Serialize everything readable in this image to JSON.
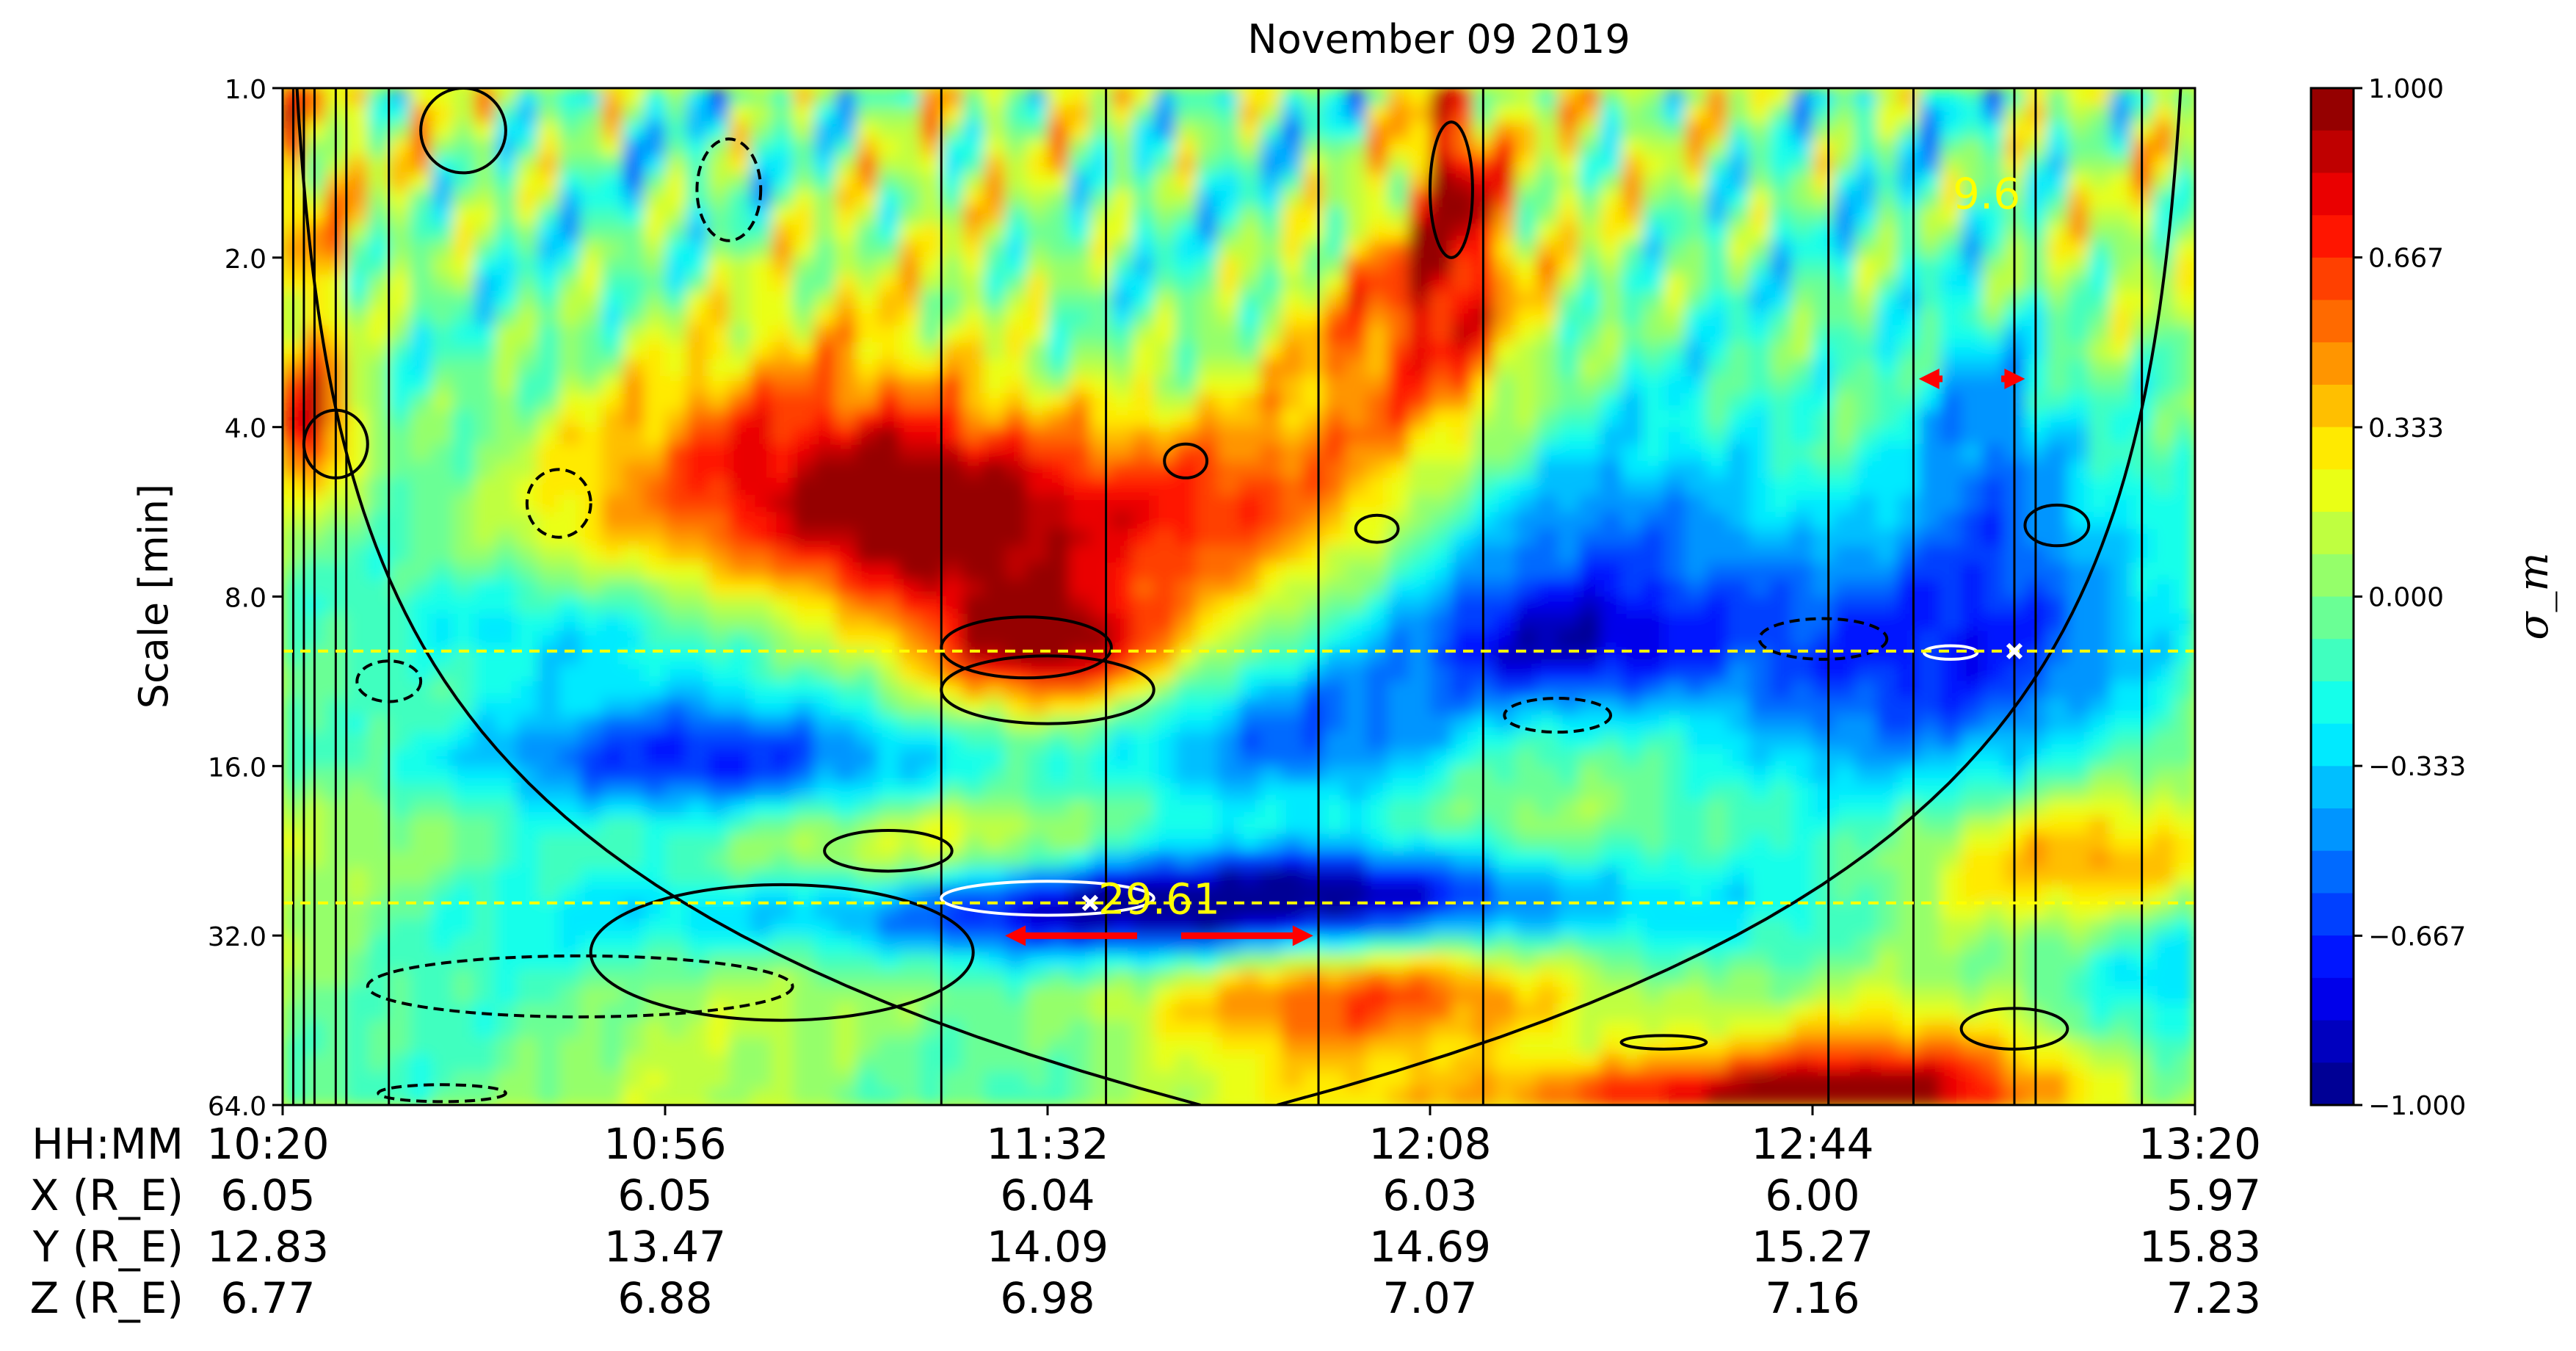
{
  "chart_data": {
    "type": "heatmap",
    "title": "November 09 2019",
    "xlabel": "",
    "ylabel": "Scale [min]",
    "y_log_base": 2,
    "ylim": [
      1.0,
      64.0
    ],
    "y_ticks": [
      1.0,
      2.0,
      4.0,
      8.0,
      16.0,
      32.0,
      64.0
    ],
    "y_tick_labels": [
      "1.0",
      "2.0",
      "4.0",
      "8.0",
      "16.0",
      "32.0",
      "64.0"
    ],
    "y_inverted": true,
    "x_range_hhmm": [
      "10:20",
      "13:20"
    ],
    "colorbar": {
      "label": "σ_m",
      "range": [
        -1.0,
        1.0
      ],
      "ticks": [
        1.0,
        0.667,
        0.333,
        0.0,
        -0.333,
        -0.667,
        -1.0
      ],
      "tick_labels": [
        "1.000",
        "0.667",
        "0.333",
        "0.000",
        "−0.333",
        "−0.667",
        "−1.000"
      ],
      "colormap": "jet",
      "levels": 24
    },
    "position_table": {
      "row_labels": [
        "HH:MM",
        "X (R_E)",
        "Y (R_E)",
        "Z (R_E)"
      ],
      "columns": [
        {
          "time": "10:20",
          "x": "6.05",
          "y": "12.83",
          "z": "6.77"
        },
        {
          "time": "10:56",
          "x": "6.05",
          "y": "13.47",
          "z": "6.88"
        },
        {
          "time": "11:32",
          "x": "6.04",
          "y": "14.09",
          "z": "6.98"
        },
        {
          "time": "12:08",
          "x": "6.03",
          "y": "14.69",
          "z": "7.07"
        },
        {
          "time": "12:44",
          "x": "6.00",
          "y": "15.27",
          "z": "7.16"
        },
        {
          "time": "13:20",
          "x": "5.97",
          "y": "15.83",
          "z": "7.23"
        }
      ]
    },
    "vertical_lines_minutes": [
      1,
      2,
      3,
      5,
      6,
      10,
      62,
      77.5,
      97.5,
      113,
      145.5,
      153.5,
      163,
      165,
      175
    ],
    "horizontal_markers": [
      {
        "scale": 10.0,
        "style": "yellow-dashed"
      },
      {
        "scale": 28.0,
        "style": "yellow-dashed"
      }
    ],
    "annotations": [
      {
        "text": "29.61",
        "color": "#ffff00",
        "time_min": 80,
        "scale": 22.0,
        "arrow_span_min": [
          68,
          97
        ]
      },
      {
        "text": "9.6",
        "color": "#ffff00",
        "time_min": 158,
        "scale": 1.55,
        "arrow_span_min": [
          154,
          164
        ]
      }
    ],
    "coi_label": "cone of influence"
  }
}
